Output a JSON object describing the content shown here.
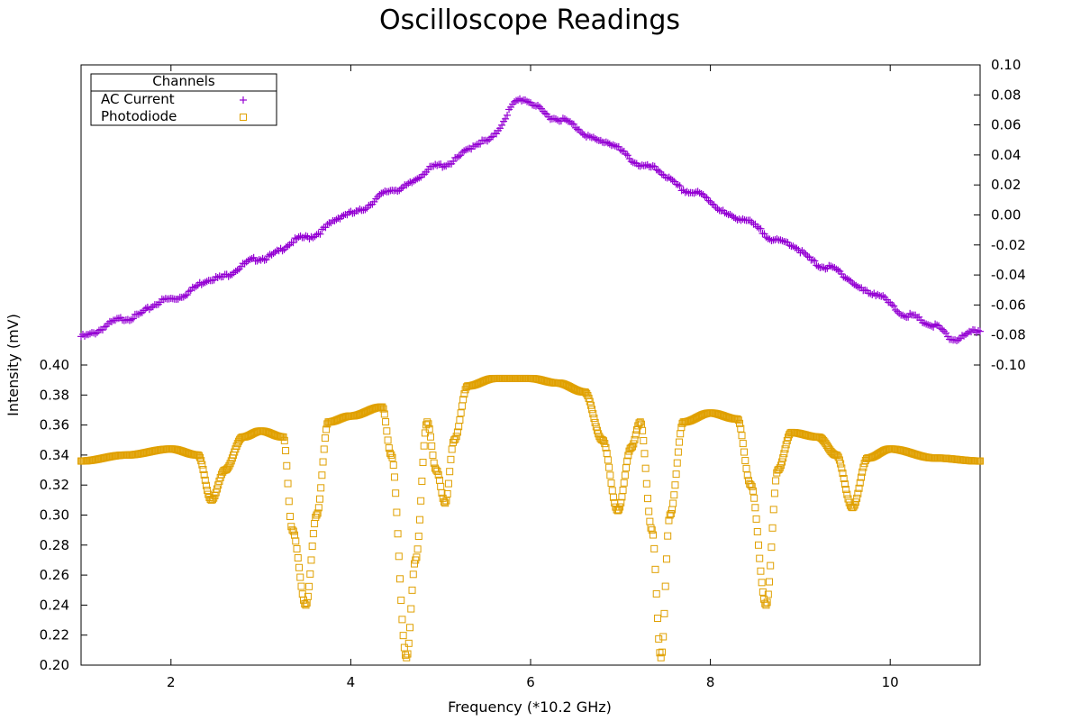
{
  "chart_data": {
    "type": "scatter",
    "title": "Oscilloscope Readings",
    "xlabel": "Frequency (*10.2 GHz)",
    "ylabel": "Intensity (mV)",
    "xlim": [
      1,
      11
    ],
    "y_left_lim": [
      0.2,
      0.4
    ],
    "y_right_lim": [
      -0.1,
      0.1
    ],
    "x_ticks": [
      "2",
      "4",
      "6",
      "8",
      "10"
    ],
    "y_left_ticks": [
      "0.20",
      "0.22",
      "0.24",
      "0.26",
      "0.28",
      "0.30",
      "0.32",
      "0.34",
      "0.36",
      "0.38",
      "0.40"
    ],
    "y_right_ticks": [
      "-0.10",
      "-0.08",
      "-0.06",
      "-0.04",
      "-0.02",
      "0.00",
      "0.02",
      "0.04",
      "0.06",
      "0.08",
      "0.10"
    ],
    "grid": false,
    "legend": {
      "title": "Channels",
      "placement": "top-left"
    },
    "series": [
      {
        "name": "AC Current",
        "axis": "right",
        "marker": "plus",
        "color": "#9400D3",
        "x": [
          1.0,
          1.5,
          2.0,
          2.5,
          3.0,
          3.5,
          4.0,
          4.5,
          5.0,
          5.5,
          5.9,
          6.3,
          6.8,
          7.3,
          7.8,
          8.3,
          8.8,
          9.3,
          9.8,
          10.2,
          10.5,
          10.7,
          11.0
        ],
        "y": [
          -0.081,
          -0.069,
          -0.056,
          -0.042,
          -0.029,
          -0.015,
          0.001,
          0.017,
          0.033,
          0.049,
          0.077,
          0.064,
          0.049,
          0.032,
          0.015,
          -0.002,
          -0.018,
          -0.035,
          -0.052,
          -0.067,
          -0.074,
          -0.083,
          -0.077
        ]
      },
      {
        "name": "Photodiode",
        "axis": "left",
        "marker": "open-square",
        "color": "#E0A000",
        "x": [
          1.0,
          1.5,
          2.0,
          2.3,
          2.45,
          2.6,
          2.8,
          3.0,
          3.25,
          3.35,
          3.5,
          3.62,
          3.75,
          4.0,
          4.35,
          4.45,
          4.62,
          4.72,
          4.85,
          4.95,
          5.05,
          5.15,
          5.3,
          5.6,
          6.0,
          6.3,
          6.6,
          6.8,
          6.97,
          7.12,
          7.22,
          7.35,
          7.45,
          7.55,
          7.7,
          8.0,
          8.3,
          8.45,
          8.62,
          8.75,
          8.9,
          9.2,
          9.4,
          9.58,
          9.75,
          10.0,
          10.5,
          11.0
        ],
        "y": [
          0.336,
          0.34,
          0.344,
          0.34,
          0.31,
          0.33,
          0.352,
          0.356,
          0.352,
          0.29,
          0.24,
          0.3,
          0.362,
          0.366,
          0.372,
          0.34,
          0.205,
          0.27,
          0.362,
          0.33,
          0.308,
          0.35,
          0.386,
          0.391,
          0.391,
          0.388,
          0.382,
          0.35,
          0.303,
          0.345,
          0.362,
          0.29,
          0.205,
          0.3,
          0.362,
          0.368,
          0.364,
          0.32,
          0.24,
          0.33,
          0.355,
          0.352,
          0.34,
          0.305,
          0.338,
          0.344,
          0.338,
          0.336
        ]
      }
    ]
  }
}
